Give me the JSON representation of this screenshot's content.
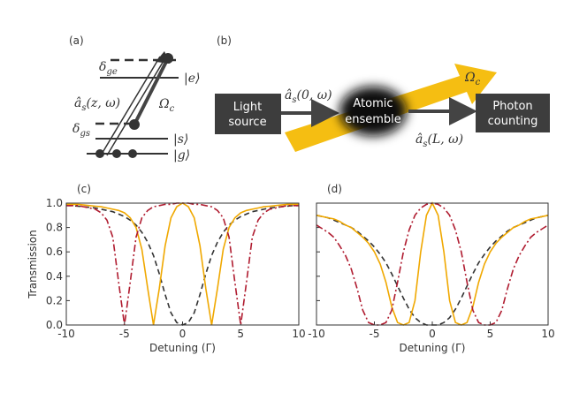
{
  "diagram_a": {
    "panel_label": "(a)",
    "delta_ge": {
      "symbol": "δ",
      "sub": "ge"
    },
    "ket_e": "|e⟩",
    "probe": {
      "symbol": "â",
      "sub": "s",
      "args": "(z, ω)"
    },
    "control": {
      "symbol": "Ω",
      "sub": "c"
    },
    "delta_gs": {
      "symbol": "δ",
      "sub": "gs"
    },
    "ket_s": "|s⟩",
    "ket_g": "|g⟩"
  },
  "diagram_b": {
    "panel_label": "(b)",
    "source": [
      "Light",
      "source"
    ],
    "input": {
      "symbol": "â",
      "sub": "s",
      "args": "(0, ω)"
    },
    "ensemble": [
      "Atomic",
      "ensemble"
    ],
    "detector": [
      "Photon",
      "counting"
    ],
    "output": {
      "symbol": "â",
      "sub": "s",
      "args": "(L, ω)"
    },
    "control": {
      "symbol": "Ω",
      "sub": "c"
    }
  },
  "chart_data": [
    {
      "type": "line",
      "panel_label": "(c)",
      "xlabel": "Detuning (Γ)",
      "ylabel": "Transmission",
      "show_ytick_labels": true,
      "xlim": [
        -10,
        10
      ],
      "xticks": [
        -10,
        -5,
        0,
        5,
        10
      ],
      "ylim": [
        0,
        1
      ],
      "yticks": [
        {
          "value": 0,
          "label": "0.0"
        },
        0.2,
        0.4,
        0.6,
        0.8,
        {
          "value": 1,
          "label": "1.0"
        }
      ],
      "x": [
        -10,
        -9.5,
        -9,
        -8.5,
        -8,
        -7.5,
        -7,
        -6.5,
        -6,
        -5.5,
        -5,
        -4.5,
        -4,
        -3.5,
        -3,
        -2.5,
        -2,
        -1.5,
        -1,
        -0.5,
        0,
        0.5,
        1,
        1.5,
        2,
        2.5,
        3,
        3.5,
        4,
        4.5,
        5,
        5.5,
        6,
        6.5,
        7,
        7.5,
        8,
        8.5,
        9,
        9.5,
        10
      ],
      "series": [
        {
          "color": "#333333",
          "style": "dashed",
          "values": [
            0.98,
            0.98,
            0.975,
            0.97,
            0.965,
            0.96,
            0.95,
            0.94,
            0.93,
            0.91,
            0.89,
            0.86,
            0.82,
            0.76,
            0.68,
            0.57,
            0.42,
            0.25,
            0.1,
            0.02,
            0,
            0.02,
            0.1,
            0.25,
            0.42,
            0.57,
            0.68,
            0.76,
            0.82,
            0.86,
            0.89,
            0.91,
            0.93,
            0.94,
            0.95,
            0.96,
            0.965,
            0.97,
            0.975,
            0.98,
            0.98
          ]
        },
        {
          "color": "#f0a800",
          "style": "solid",
          "values": [
            0.99,
            0.99,
            0.99,
            0.985,
            0.98,
            0.975,
            0.97,
            0.96,
            0.95,
            0.94,
            0.92,
            0.88,
            0.8,
            0.62,
            0.3,
            0,
            0.3,
            0.65,
            0.88,
            0.97,
            1,
            0.97,
            0.88,
            0.65,
            0.3,
            0,
            0.3,
            0.62,
            0.8,
            0.88,
            0.92,
            0.94,
            0.95,
            0.96,
            0.97,
            0.975,
            0.98,
            0.985,
            0.99,
            0.99,
            0.99
          ]
        },
        {
          "color": "#b01c30",
          "style": "dashdot",
          "values": [
            0.98,
            0.98,
            0.98,
            0.97,
            0.96,
            0.95,
            0.92,
            0.86,
            0.72,
            0.35,
            0,
            0.35,
            0.72,
            0.88,
            0.94,
            0.97,
            0.98,
            0.99,
            0.99,
            1,
            1,
            1,
            0.99,
            0.99,
            0.98,
            0.97,
            0.94,
            0.88,
            0.72,
            0.35,
            0,
            0.35,
            0.72,
            0.86,
            0.92,
            0.95,
            0.96,
            0.97,
            0.98,
            0.98,
            0.98
          ]
        }
      ]
    },
    {
      "type": "line",
      "panel_label": "(d)",
      "xlabel": "Detuning (Γ)",
      "show_ytick_labels": false,
      "xlim": [
        -10,
        10
      ],
      "xticks": [
        -10,
        -5,
        0,
        5,
        10
      ],
      "ylim": [
        0,
        1
      ],
      "yticks": [
        0,
        0.2,
        0.4,
        0.6,
        0.8,
        1
      ],
      "x": [
        -10,
        -9.5,
        -9,
        -8.5,
        -8,
        -7.5,
        -7,
        -6.5,
        -6,
        -5.5,
        -5,
        -4.5,
        -4,
        -3.5,
        -3,
        -2.5,
        -2,
        -1.5,
        -1,
        -0.5,
        0,
        0.5,
        1,
        1.5,
        2,
        2.5,
        3,
        3.5,
        4,
        4.5,
        5,
        5.5,
        6,
        6.5,
        7,
        7.5,
        8,
        8.5,
        9,
        9.5,
        10
      ],
      "series": [
        {
          "color": "#333333",
          "style": "dashed",
          "values": [
            0.9,
            0.89,
            0.88,
            0.86,
            0.84,
            0.82,
            0.8,
            0.77,
            0.73,
            0.69,
            0.64,
            0.58,
            0.51,
            0.42,
            0.32,
            0.22,
            0.13,
            0.06,
            0.02,
            0,
            0,
            0,
            0.02,
            0.06,
            0.13,
            0.22,
            0.32,
            0.42,
            0.51,
            0.58,
            0.64,
            0.69,
            0.73,
            0.77,
            0.8,
            0.82,
            0.84,
            0.86,
            0.88,
            0.89,
            0.9
          ]
        },
        {
          "color": "#f0a800",
          "style": "solid",
          "values": [
            0.9,
            0.89,
            0.88,
            0.87,
            0.85,
            0.82,
            0.8,
            0.76,
            0.72,
            0.67,
            0.6,
            0.5,
            0.35,
            0.15,
            0.02,
            0,
            0.02,
            0.2,
            0.6,
            0.9,
            1,
            0.9,
            0.6,
            0.2,
            0.02,
            0,
            0.02,
            0.15,
            0.35,
            0.5,
            0.6,
            0.67,
            0.72,
            0.76,
            0.8,
            0.82,
            0.85,
            0.87,
            0.88,
            0.89,
            0.9
          ]
        },
        {
          "color": "#b01c30",
          "style": "dashdot",
          "values": [
            0.82,
            0.79,
            0.76,
            0.72,
            0.65,
            0.57,
            0.46,
            0.3,
            0.12,
            0.02,
            0,
            0,
            0.02,
            0.12,
            0.35,
            0.6,
            0.78,
            0.9,
            0.96,
            0.99,
            1,
            0.99,
            0.96,
            0.9,
            0.78,
            0.6,
            0.35,
            0.12,
            0.02,
            0,
            0,
            0.02,
            0.12,
            0.3,
            0.46,
            0.57,
            0.65,
            0.72,
            0.76,
            0.79,
            0.82
          ]
        }
      ]
    }
  ]
}
